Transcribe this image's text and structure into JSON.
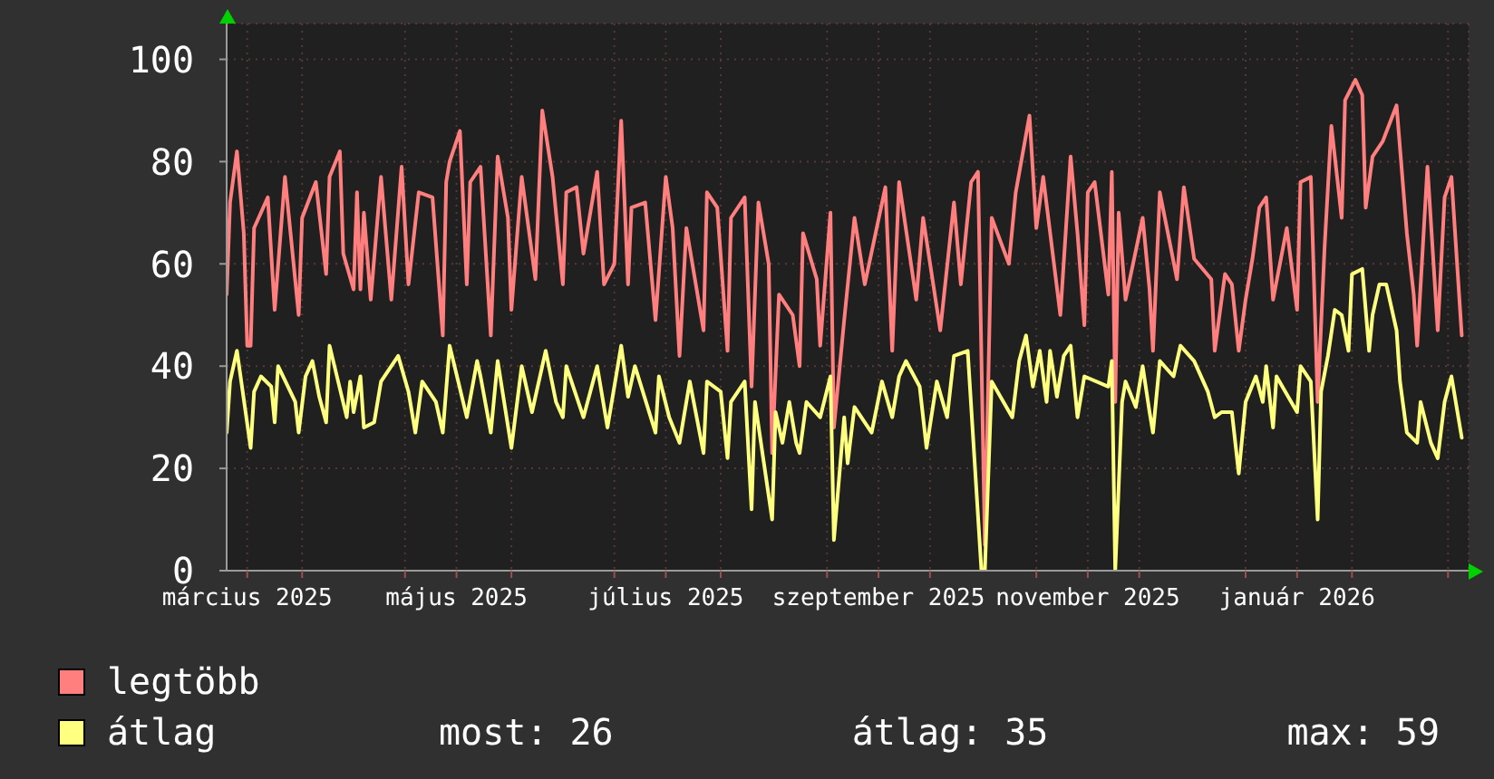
{
  "chart_data": {
    "type": "line",
    "ylim": [
      0,
      107
    ],
    "yticks": [
      0,
      20,
      40,
      60,
      80,
      100
    ],
    "xlim": [
      "2025-03-10",
      "2026-03-07"
    ],
    "xticks": [
      {
        "value": "2025-03-16",
        "label": "március 2025"
      },
      {
        "value": "2025-04-01",
        "label": null
      },
      {
        "value": "2025-05-01",
        "label": null
      },
      {
        "value": "2025-05-16",
        "label": "május 2025"
      },
      {
        "value": "2025-06-01",
        "label": null
      },
      {
        "value": "2025-07-01",
        "label": null
      },
      {
        "value": "2025-07-16",
        "label": "július 2025"
      },
      {
        "value": "2025-08-01",
        "label": null
      },
      {
        "value": "2025-09-01",
        "label": null
      },
      {
        "value": "2025-09-16",
        "label": "szeptember 2025"
      },
      {
        "value": "2025-10-01",
        "label": null
      },
      {
        "value": "2025-11-01",
        "label": null
      },
      {
        "value": "2025-11-16",
        "label": "november 2025"
      },
      {
        "value": "2025-12-01",
        "label": null
      },
      {
        "value": "2026-01-01",
        "label": null
      },
      {
        "value": "2026-01-16",
        "label": "január 2026"
      },
      {
        "value": "2026-02-01",
        "label": null
      },
      {
        "value": "2026-03-01",
        "label": null
      }
    ],
    "grid": true,
    "legend": "bottom left",
    "marker": "none",
    "annotations": [
      "most: 26",
      "átlag: 35",
      "max: 59"
    ],
    "series": [
      {
        "name": "legtöbb",
        "color": "#ff7f7f",
        "x": [
          "2025-03-10",
          "2025-03-11",
          "2025-03-13",
          "2025-03-15",
          "2025-03-16",
          "2025-03-17",
          "2025-03-18",
          "2025-03-22",
          "2025-03-24",
          "2025-03-27",
          "2025-03-31",
          "2025-04-01",
          "2025-04-05",
          "2025-04-08",
          "2025-04-09",
          "2025-04-12",
          "2025-04-13",
          "2025-04-16",
          "2025-04-17",
          "2025-04-18",
          "2025-04-19",
          "2025-04-21",
          "2025-04-24",
          "2025-04-27",
          "2025-04-30",
          "2025-05-02",
          "2025-05-05",
          "2025-05-09",
          "2025-05-12",
          "2025-05-13",
          "2025-05-14",
          "2025-05-17",
          "2025-05-19",
          "2025-05-20",
          "2025-05-23",
          "2025-05-26",
          "2025-05-28",
          "2025-05-31",
          "2025-06-01",
          "2025-06-04",
          "2025-06-08",
          "2025-06-10",
          "2025-06-13",
          "2025-06-16",
          "2025-06-17",
          "2025-06-20",
          "2025-06-22",
          "2025-06-26",
          "2025-06-28",
          "2025-07-01",
          "2025-07-03",
          "2025-07-05",
          "2025-07-06",
          "2025-07-10",
          "2025-07-13",
          "2025-07-16",
          "2025-07-18",
          "2025-07-20",
          "2025-07-22",
          "2025-07-27",
          "2025-07-28",
          "2025-07-31",
          "2025-08-03",
          "2025-08-04",
          "2025-08-08",
          "2025-08-10",
          "2025-08-12",
          "2025-08-15",
          "2025-08-16",
          "2025-08-18",
          "2025-08-22",
          "2025-08-24",
          "2025-08-25",
          "2025-08-29",
          "2025-08-30",
          "2025-09-02",
          "2025-09-03",
          "2025-09-06",
          "2025-09-09",
          "2025-09-12",
          "2025-09-18",
          "2025-09-20",
          "2025-09-22",
          "2025-09-27",
          "2025-09-29",
          "2025-10-04",
          "2025-10-08",
          "2025-10-10",
          "2025-10-13",
          "2025-10-15",
          "2025-10-17",
          "2025-10-19",
          "2025-10-24",
          "2025-10-26",
          "2025-10-30",
          "2025-11-01",
          "2025-11-03",
          "2025-11-08",
          "2025-11-11",
          "2025-11-13",
          "2025-11-15",
          "2025-11-16",
          "2025-11-18",
          "2025-11-22",
          "2025-11-23",
          "2025-11-24",
          "2025-11-25",
          "2025-11-27",
          "2025-12-02",
          "2025-12-04",
          "2025-12-05",
          "2025-12-07",
          "2025-12-12",
          "2025-12-14",
          "2025-12-17",
          "2025-12-22",
          "2025-12-23",
          "2025-12-26",
          "2025-12-28",
          "2025-12-30",
          "2026-01-01",
          "2026-01-03",
          "2026-01-05",
          "2026-01-07",
          "2026-01-09",
          "2026-01-13",
          "2026-01-16",
          "2026-01-17",
          "2026-01-20",
          "2026-01-22",
          "2026-01-24",
          "2026-01-26",
          "2026-01-29",
          "2026-01-30",
          "2026-02-02",
          "2026-02-04",
          "2026-02-05",
          "2026-02-07",
          "2026-02-10",
          "2026-02-14",
          "2026-02-17",
          "2026-02-19",
          "2026-02-20",
          "2026-02-23",
          "2026-02-26",
          "2026-02-28",
          "2026-03-02",
          "2026-03-05"
        ],
        "values": [
          54,
          72,
          82,
          66,
          44,
          44,
          67,
          73,
          51,
          77,
          50,
          69,
          76,
          58,
          77,
          82,
          62,
          55,
          74,
          55,
          70,
          53,
          77,
          53,
          79,
          56,
          74,
          73,
          46,
          76,
          80,
          86,
          56,
          76,
          79,
          46,
          81,
          69,
          51,
          77,
          57,
          90,
          77,
          56,
          74,
          75,
          62,
          78,
          56,
          60,
          88,
          56,
          71,
          72,
          49,
          77,
          67,
          42,
          67,
          47,
          74,
          71,
          43,
          69,
          73,
          36,
          72,
          60,
          23,
          54,
          50,
          40,
          66,
          57,
          44,
          70,
          28,
          49,
          69,
          56,
          75,
          43,
          76,
          53,
          69,
          47,
          72,
          56,
          76,
          78,
          5,
          69,
          60,
          74,
          89,
          67,
          77,
          50,
          81,
          66,
          48,
          74,
          76,
          54,
          78,
          33,
          70,
          53,
          69,
          55,
          43,
          74,
          57,
          75,
          61,
          57,
          43,
          58,
          56,
          43,
          53,
          61,
          71,
          73,
          53,
          67,
          51,
          76,
          77,
          33,
          63,
          87,
          69,
          92,
          96,
          93,
          71,
          81,
          84,
          91,
          66,
          54,
          44,
          79,
          47,
          73,
          77,
          46
        ]
      },
      {
        "name": "átlag",
        "color": "#ffff80",
        "x": [
          "2025-03-10",
          "2025-03-11",
          "2025-03-13",
          "2025-03-17",
          "2025-03-18",
          "2025-03-20",
          "2025-03-23",
          "2025-03-24",
          "2025-03-25",
          "2025-03-30",
          "2025-03-31",
          "2025-04-02",
          "2025-04-04",
          "2025-04-06",
          "2025-04-08",
          "2025-04-09",
          "2025-04-14",
          "2025-04-15",
          "2025-04-16",
          "2025-04-18",
          "2025-04-19",
          "2025-04-22",
          "2025-04-24",
          "2025-04-29",
          "2025-05-02",
          "2025-05-04",
          "2025-05-06",
          "2025-05-10",
          "2025-05-12",
          "2025-05-14",
          "2025-05-19",
          "2025-05-22",
          "2025-05-23",
          "2025-05-26",
          "2025-05-28",
          "2025-06-01",
          "2025-06-04",
          "2025-06-07",
          "2025-06-11",
          "2025-06-14",
          "2025-06-16",
          "2025-06-17",
          "2025-06-22",
          "2025-06-26",
          "2025-06-29",
          "2025-07-03",
          "2025-07-05",
          "2025-07-07",
          "2025-07-13",
          "2025-07-14",
          "2025-07-17",
          "2025-07-20",
          "2025-07-23",
          "2025-07-27",
          "2025-07-28",
          "2025-08-01",
          "2025-08-03",
          "2025-08-04",
          "2025-08-08",
          "2025-08-10",
          "2025-08-11",
          "2025-08-16",
          "2025-08-17",
          "2025-08-19",
          "2025-08-21",
          "2025-08-23",
          "2025-08-24",
          "2025-08-26",
          "2025-08-30",
          "2025-09-02",
          "2025-09-03",
          "2025-09-06",
          "2025-09-07",
          "2025-09-09",
          "2025-09-14",
          "2025-09-17",
          "2025-09-20",
          "2025-09-22",
          "2025-09-24",
          "2025-09-28",
          "2025-09-30",
          "2025-10-03",
          "2025-10-06",
          "2025-10-08",
          "2025-10-12",
          "2025-10-16",
          "2025-10-17",
          "2025-10-19",
          "2025-10-25",
          "2025-10-27",
          "2025-10-29",
          "2025-10-31",
          "2025-11-02",
          "2025-11-04",
          "2025-11-05",
          "2025-11-07",
          "2025-11-09",
          "2025-11-11",
          "2025-11-13",
          "2025-11-15",
          "2025-11-22",
          "2025-11-23",
          "2025-11-24",
          "2025-11-26",
          "2025-11-27",
          "2025-11-30",
          "2025-12-02",
          "2025-12-04",
          "2025-12-05",
          "2025-12-07",
          "2025-12-11",
          "2025-12-13",
          "2025-12-17",
          "2025-12-21",
          "2025-12-23",
          "2025-12-25",
          "2025-12-28",
          "2025-12-30",
          "2026-01-01",
          "2026-01-04",
          "2026-01-06",
          "2026-01-07",
          "2026-01-09",
          "2026-01-10",
          "2026-01-16",
          "2026-01-17",
          "2026-01-20",
          "2026-01-22",
          "2026-01-23",
          "2026-01-25",
          "2026-01-27",
          "2026-01-29",
          "2026-01-31",
          "2026-02-01",
          "2026-02-04",
          "2026-02-06",
          "2026-02-07",
          "2026-02-09",
          "2026-02-11",
          "2026-02-14",
          "2026-02-15",
          "2026-02-17",
          "2026-02-20",
          "2026-02-21",
          "2026-02-24",
          "2026-02-26",
          "2026-02-28",
          "2026-03-02",
          "2026-03-05"
        ],
        "values": [
          27,
          37,
          43,
          24,
          35,
          38,
          36,
          29,
          40,
          33,
          27,
          38,
          41,
          34,
          29,
          44,
          30,
          37,
          31,
          38,
          28,
          29,
          37,
          42,
          35,
          27,
          37,
          33,
          27,
          44,
          30,
          41,
          38,
          27,
          41,
          24,
          40,
          31,
          43,
          33,
          30,
          40,
          30,
          40,
          28,
          44,
          34,
          40,
          27,
          38,
          30,
          25,
          37,
          23,
          37,
          35,
          22,
          33,
          37,
          12,
          33,
          10,
          31,
          25,
          33,
          25,
          23,
          33,
          30,
          38,
          6,
          30,
          21,
          32,
          27,
          37,
          30,
          38,
          41,
          36,
          24,
          37,
          30,
          42,
          43,
          0,
          0,
          37,
          30,
          41,
          46,
          36,
          43,
          33,
          43,
          34,
          42,
          44,
          30,
          38,
          36,
          41,
          0,
          33,
          37,
          32,
          40,
          31,
          27,
          41,
          38,
          44,
          41,
          35,
          30,
          31,
          31,
          19,
          33,
          38,
          33,
          40,
          28,
          38,
          31,
          40,
          37,
          10,
          35,
          42,
          51,
          50,
          43,
          58,
          59,
          43,
          50,
          56,
          56,
          47,
          37,
          27,
          25,
          33,
          25,
          22,
          33,
          38,
          26
        ]
      }
    ]
  }
}
